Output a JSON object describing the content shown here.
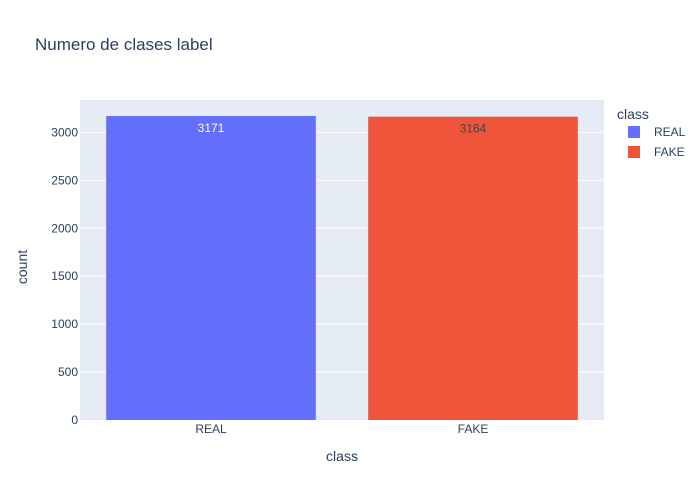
{
  "chart_data": {
    "type": "bar",
    "title": "Numero de clases label",
    "xlabel": "class",
    "ylabel": "count",
    "categories": [
      "REAL",
      "FAKE"
    ],
    "series": [
      {
        "name": "REAL",
        "category": "REAL",
        "value": 3171,
        "color": "#636efa",
        "label_color": "#ffffff"
      },
      {
        "name": "FAKE",
        "category": "FAKE",
        "value": 3164,
        "color": "#ef553b",
        "label_color": "#444444"
      }
    ],
    "yticks": [
      0,
      500,
      1000,
      1500,
      2000,
      2500,
      3000
    ],
    "ylim": [
      0,
      3338
    ],
    "legend": {
      "title": "class",
      "position": "top-right"
    },
    "grid": true,
    "background": "#e5ecf6",
    "grid_color": "#ffffff"
  }
}
